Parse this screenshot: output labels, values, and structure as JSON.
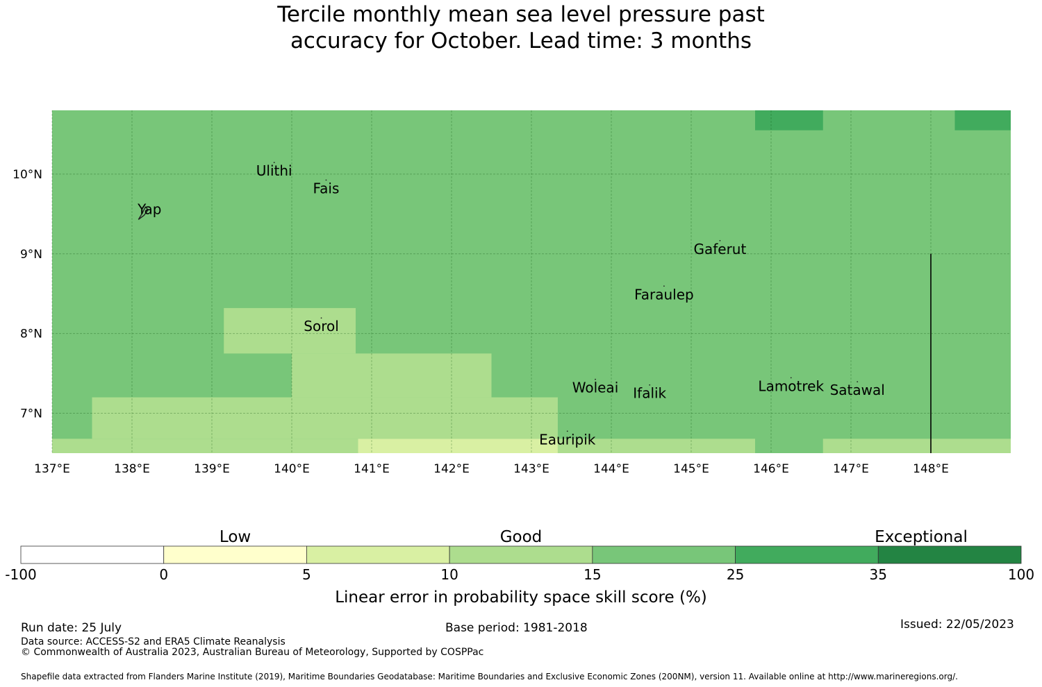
{
  "title": {
    "line1": "Tercile monthly mean sea level pressure past",
    "line2": "accuracy for October. Lead time: 3 months"
  },
  "map": {
    "lon_range": [
      137,
      149
    ],
    "lat_range": [
      6.5,
      10.8
    ],
    "lon_ticks": [
      {
        "value": 137,
        "label": "137°E"
      },
      {
        "value": 138,
        "label": "138°E"
      },
      {
        "value": 139,
        "label": "139°E"
      },
      {
        "value": 140,
        "label": "140°E"
      },
      {
        "value": 141,
        "label": "141°E"
      },
      {
        "value": 142,
        "label": "142°E"
      },
      {
        "value": 143,
        "label": "143°E"
      },
      {
        "value": 144,
        "label": "144°E"
      },
      {
        "value": 145,
        "label": "145°E"
      },
      {
        "value": 146,
        "label": "146°E"
      },
      {
        "value": 147,
        "label": "147°E"
      },
      {
        "value": 148,
        "label": "148°E"
      }
    ],
    "lat_ticks": [
      {
        "value": 10,
        "label": "10°N"
      },
      {
        "value": 9,
        "label": "9°N"
      },
      {
        "value": 8,
        "label": "8°N"
      },
      {
        "value": 7,
        "label": "7°N"
      }
    ],
    "background_color": "#78c679",
    "cells": [
      {
        "lon": [
          145.8,
          146.65
        ],
        "lat": [
          10.55,
          10.8
        ],
        "color": "#41ab5d"
      },
      {
        "lon": [
          148.3,
          149.0
        ],
        "lat": [
          10.55,
          10.8
        ],
        "color": "#41ab5d"
      },
      {
        "lon": [
          139.15,
          140.8
        ],
        "lat": [
          7.75,
          8.32
        ],
        "color": "#addd8e"
      },
      {
        "lon": [
          140.0,
          140.8
        ],
        "lat": [
          7.2,
          7.75
        ],
        "color": "#addd8e"
      },
      {
        "lon": [
          140.8,
          142.5
        ],
        "lat": [
          7.2,
          7.75
        ],
        "color": "#addd8e"
      },
      {
        "lon": [
          137.5,
          143.33
        ],
        "lat": [
          6.68,
          7.2
        ],
        "color": "#addd8e"
      },
      {
        "lon": [
          137.0,
          140.83
        ],
        "lat": [
          6.5,
          6.68
        ],
        "color": "#addd8e"
      },
      {
        "lon": [
          140.83,
          143.33
        ],
        "lat": [
          6.5,
          6.68
        ],
        "color": "#d9f0a3"
      },
      {
        "lon": [
          143.33,
          145.8
        ],
        "lat": [
          6.5,
          6.68
        ],
        "color": "#addd8e"
      },
      {
        "lon": [
          146.65,
          149.0
        ],
        "lat": [
          6.5,
          6.68
        ],
        "color": "#addd8e"
      }
    ],
    "boundary_line": {
      "lon": 148.0,
      "lat": [
        6.5,
        9.0
      ]
    },
    "places": [
      {
        "name": "Ulithi",
        "lon": 139.78,
        "lat": 9.98
      },
      {
        "name": "Fais",
        "lon": 140.43,
        "lat": 9.76
      },
      {
        "name": "Yap",
        "lon": 138.22,
        "lat": 9.5
      },
      {
        "name": "Gaferut",
        "lon": 145.36,
        "lat": 9.0
      },
      {
        "name": "Faraulep",
        "lon": 144.66,
        "lat": 8.43
      },
      {
        "name": "Sorol",
        "lon": 140.37,
        "lat": 8.03
      },
      {
        "name": "Woleai",
        "lon": 143.8,
        "lat": 7.26
      },
      {
        "name": "Ifalik",
        "lon": 144.48,
        "lat": 7.19
      },
      {
        "name": "Lamotrek",
        "lon": 146.25,
        "lat": 7.28
      },
      {
        "name": "Satawal",
        "lon": 147.08,
        "lat": 7.23
      },
      {
        "name": "Eauripik",
        "lon": 143.45,
        "lat": 6.61
      }
    ]
  },
  "colorbar": {
    "segments": [
      {
        "color": "#ffffff"
      },
      {
        "color": "#ffffcc"
      },
      {
        "color": "#d9f0a3"
      },
      {
        "color": "#addd8e"
      },
      {
        "color": "#78c679"
      },
      {
        "color": "#41ab5d"
      },
      {
        "color": "#238443"
      }
    ],
    "ticks": [
      "-100",
      "0",
      "5",
      "10",
      "15",
      "25",
      "35",
      "100"
    ],
    "categories": [
      {
        "label": "Low",
        "position": 1.5
      },
      {
        "label": "Good",
        "position": 3.5
      },
      {
        "label": "Exceptional",
        "position": 6.3
      }
    ],
    "label": "Linear error in probability space skill score (%)"
  },
  "footer": {
    "run_date": "Run date: 25 July",
    "base_period": "Base period: 1981-2018",
    "issued": "Issued: 22/05/2023",
    "data_source": "Data source: ACCESS-S2 and ERA5 Climate Reanalysis",
    "copyright": "© Commonwealth of Australia 2023, Australian Bureau of Meteorology, Supported by COSPPac",
    "shapefile": "Shapefile data extracted from Flanders Marine Institute (2019), Maritime Boundaries Geodatabase: Maritime Boundaries and Exclusive Economic Zones (200NM), version 11. Available online at http://www.marineregions.org/."
  }
}
